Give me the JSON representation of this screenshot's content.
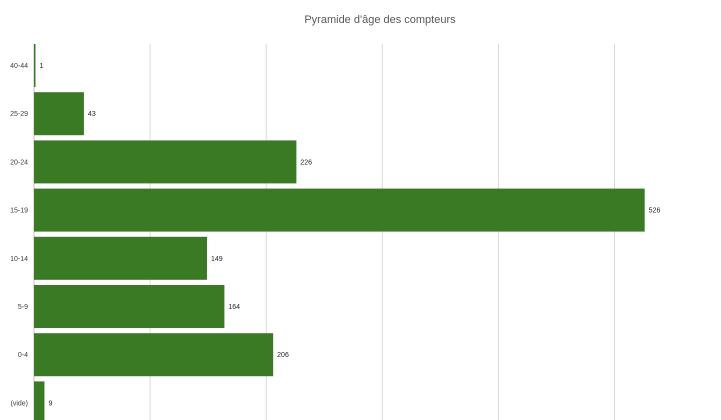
{
  "chart_data": {
    "type": "bar",
    "orientation": "horizontal",
    "title": "Pyramide d'âge des compteurs",
    "xlabel": "",
    "ylabel": "",
    "categories": [
      "40-44",
      "25-29",
      "20-24",
      "15-19",
      "10-14",
      "5-9",
      "0-4",
      "(vide)"
    ],
    "values": [
      1,
      43,
      226,
      526,
      149,
      164,
      206,
      9
    ],
    "xlim": [
      0,
      600
    ],
    "x_gridlines": [
      100,
      200,
      300,
      400,
      500,
      600
    ],
    "grid": true,
    "legend": "none",
    "data_labels": true,
    "bar_color": "#3a7a25"
  }
}
